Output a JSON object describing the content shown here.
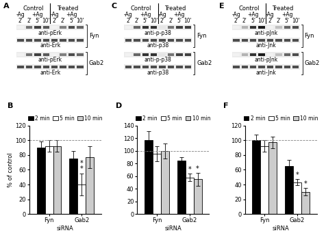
{
  "blots": [
    {
      "panel": "A",
      "groups": [
        "Control",
        "Treated"
      ],
      "ag": [
        "-Ag",
        "+Ag"
      ],
      "times": [
        "2'",
        "2'",
        "5'",
        "10'",
        "2'",
        "2'",
        "5'",
        "10'"
      ],
      "sirna_groups": [
        "Fyn",
        "Gab2"
      ],
      "antibodies": [
        "anti-pErk",
        "anti-Erk",
        "anti-pErk",
        "anti-Erk"
      ]
    },
    {
      "panel": "C",
      "groups": [
        "Control",
        "Treated"
      ],
      "ag": [
        "-Ag",
        "+Ag"
      ],
      "times": [
        "2'",
        "2'",
        "5'",
        "10'",
        "2'",
        "2'",
        "5'",
        "10'"
      ],
      "sirna_groups": [
        "Fyn",
        "Gab2"
      ],
      "antibodies": [
        "anti-p-p38",
        "anti-p38",
        "anti-p-p38",
        "anti-p38"
      ]
    },
    {
      "panel": "E",
      "groups": [
        "Control",
        "Treated"
      ],
      "ag": [
        "-Ag",
        "+Ag"
      ],
      "times": [
        "2'",
        "2'",
        "5'",
        "10'",
        "2'",
        "2'",
        "5'",
        "10'"
      ],
      "sirna_groups": [
        "Fyn",
        "Gab2"
      ],
      "antibodies": [
        "anti-pJnk",
        "anti-Jnk",
        "anti-pJnk",
        "anti-Jnk"
      ]
    }
  ],
  "chart_data": [
    {
      "type": "bar",
      "panel": "B",
      "ylabel": "% of control",
      "xlabel": "siRNA",
      "categories": [
        "Fyn",
        "Gab2"
      ],
      "series": [
        {
          "name": "2 min",
          "color": "#000000",
          "values": [
            90,
            75
          ],
          "errors": [
            8,
            10
          ]
        },
        {
          "name": "5 min",
          "color": "#ffffff",
          "values": [
            92,
            40
          ],
          "errors": [
            8,
            15
          ]
        },
        {
          "name": "10 min",
          "color": "#cccccc",
          "values": [
            92,
            77
          ],
          "errors": [
            8,
            15
          ]
        }
      ],
      "ylim": [
        0,
        120
      ],
      "yticks": [
        0,
        20,
        40,
        60,
        80,
        100,
        120
      ],
      "reference_line": 100,
      "legend": "upper center",
      "annotations": [
        {
          "category": "Gab2",
          "series": "5 min",
          "text": "*\n*"
        }
      ]
    },
    {
      "type": "bar",
      "panel": "D",
      "xlabel": "siRNA",
      "categories": [
        "Fyn",
        "Gab2"
      ],
      "series": [
        {
          "name": "2 min",
          "color": "#000000",
          "values": [
            117,
            85
          ],
          "errors": [
            14,
            5
          ]
        },
        {
          "name": "5 min",
          "color": "#ffffff",
          "values": [
            95,
            58
          ],
          "errors": [
            12,
            6
          ]
        },
        {
          "name": "10 min",
          "color": "#cccccc",
          "values": [
            100,
            55
          ],
          "errors": [
            12,
            10
          ]
        }
      ],
      "ylim": [
        0,
        140
      ],
      "yticks": [
        0,
        20,
        40,
        60,
        80,
        100,
        120,
        140
      ],
      "reference_line": 100,
      "legend": "upper center",
      "annotations": [
        {
          "category": "Gab2",
          "series": "5 min",
          "text": "*"
        },
        {
          "category": "Gab2",
          "series": "10 min",
          "text": "*"
        }
      ]
    },
    {
      "type": "bar",
      "panel": "F",
      "xlabel": "siRNA",
      "categories": [
        "Fyn",
        "Gab2"
      ],
      "series": [
        {
          "name": "2 min",
          "color": "#000000",
          "values": [
            100,
            65
          ],
          "errors": [
            8,
            8
          ]
        },
        {
          "name": "5 min",
          "color": "#ffffff",
          "values": [
            92,
            43
          ],
          "errors": [
            8,
            4
          ]
        },
        {
          "name": "10 min",
          "color": "#cccccc",
          "values": [
            97,
            30
          ],
          "errors": [
            8,
            5
          ]
        }
      ],
      "ylim": [
        0,
        120
      ],
      "yticks": [
        0,
        20,
        40,
        60,
        80,
        100,
        120
      ],
      "reference_line": 100,
      "legend": "upper center",
      "annotations": [
        {
          "category": "Gab2",
          "series": "5 min",
          "text": "*"
        },
        {
          "category": "Gab2",
          "series": "10 min",
          "text": "*"
        }
      ]
    }
  ]
}
